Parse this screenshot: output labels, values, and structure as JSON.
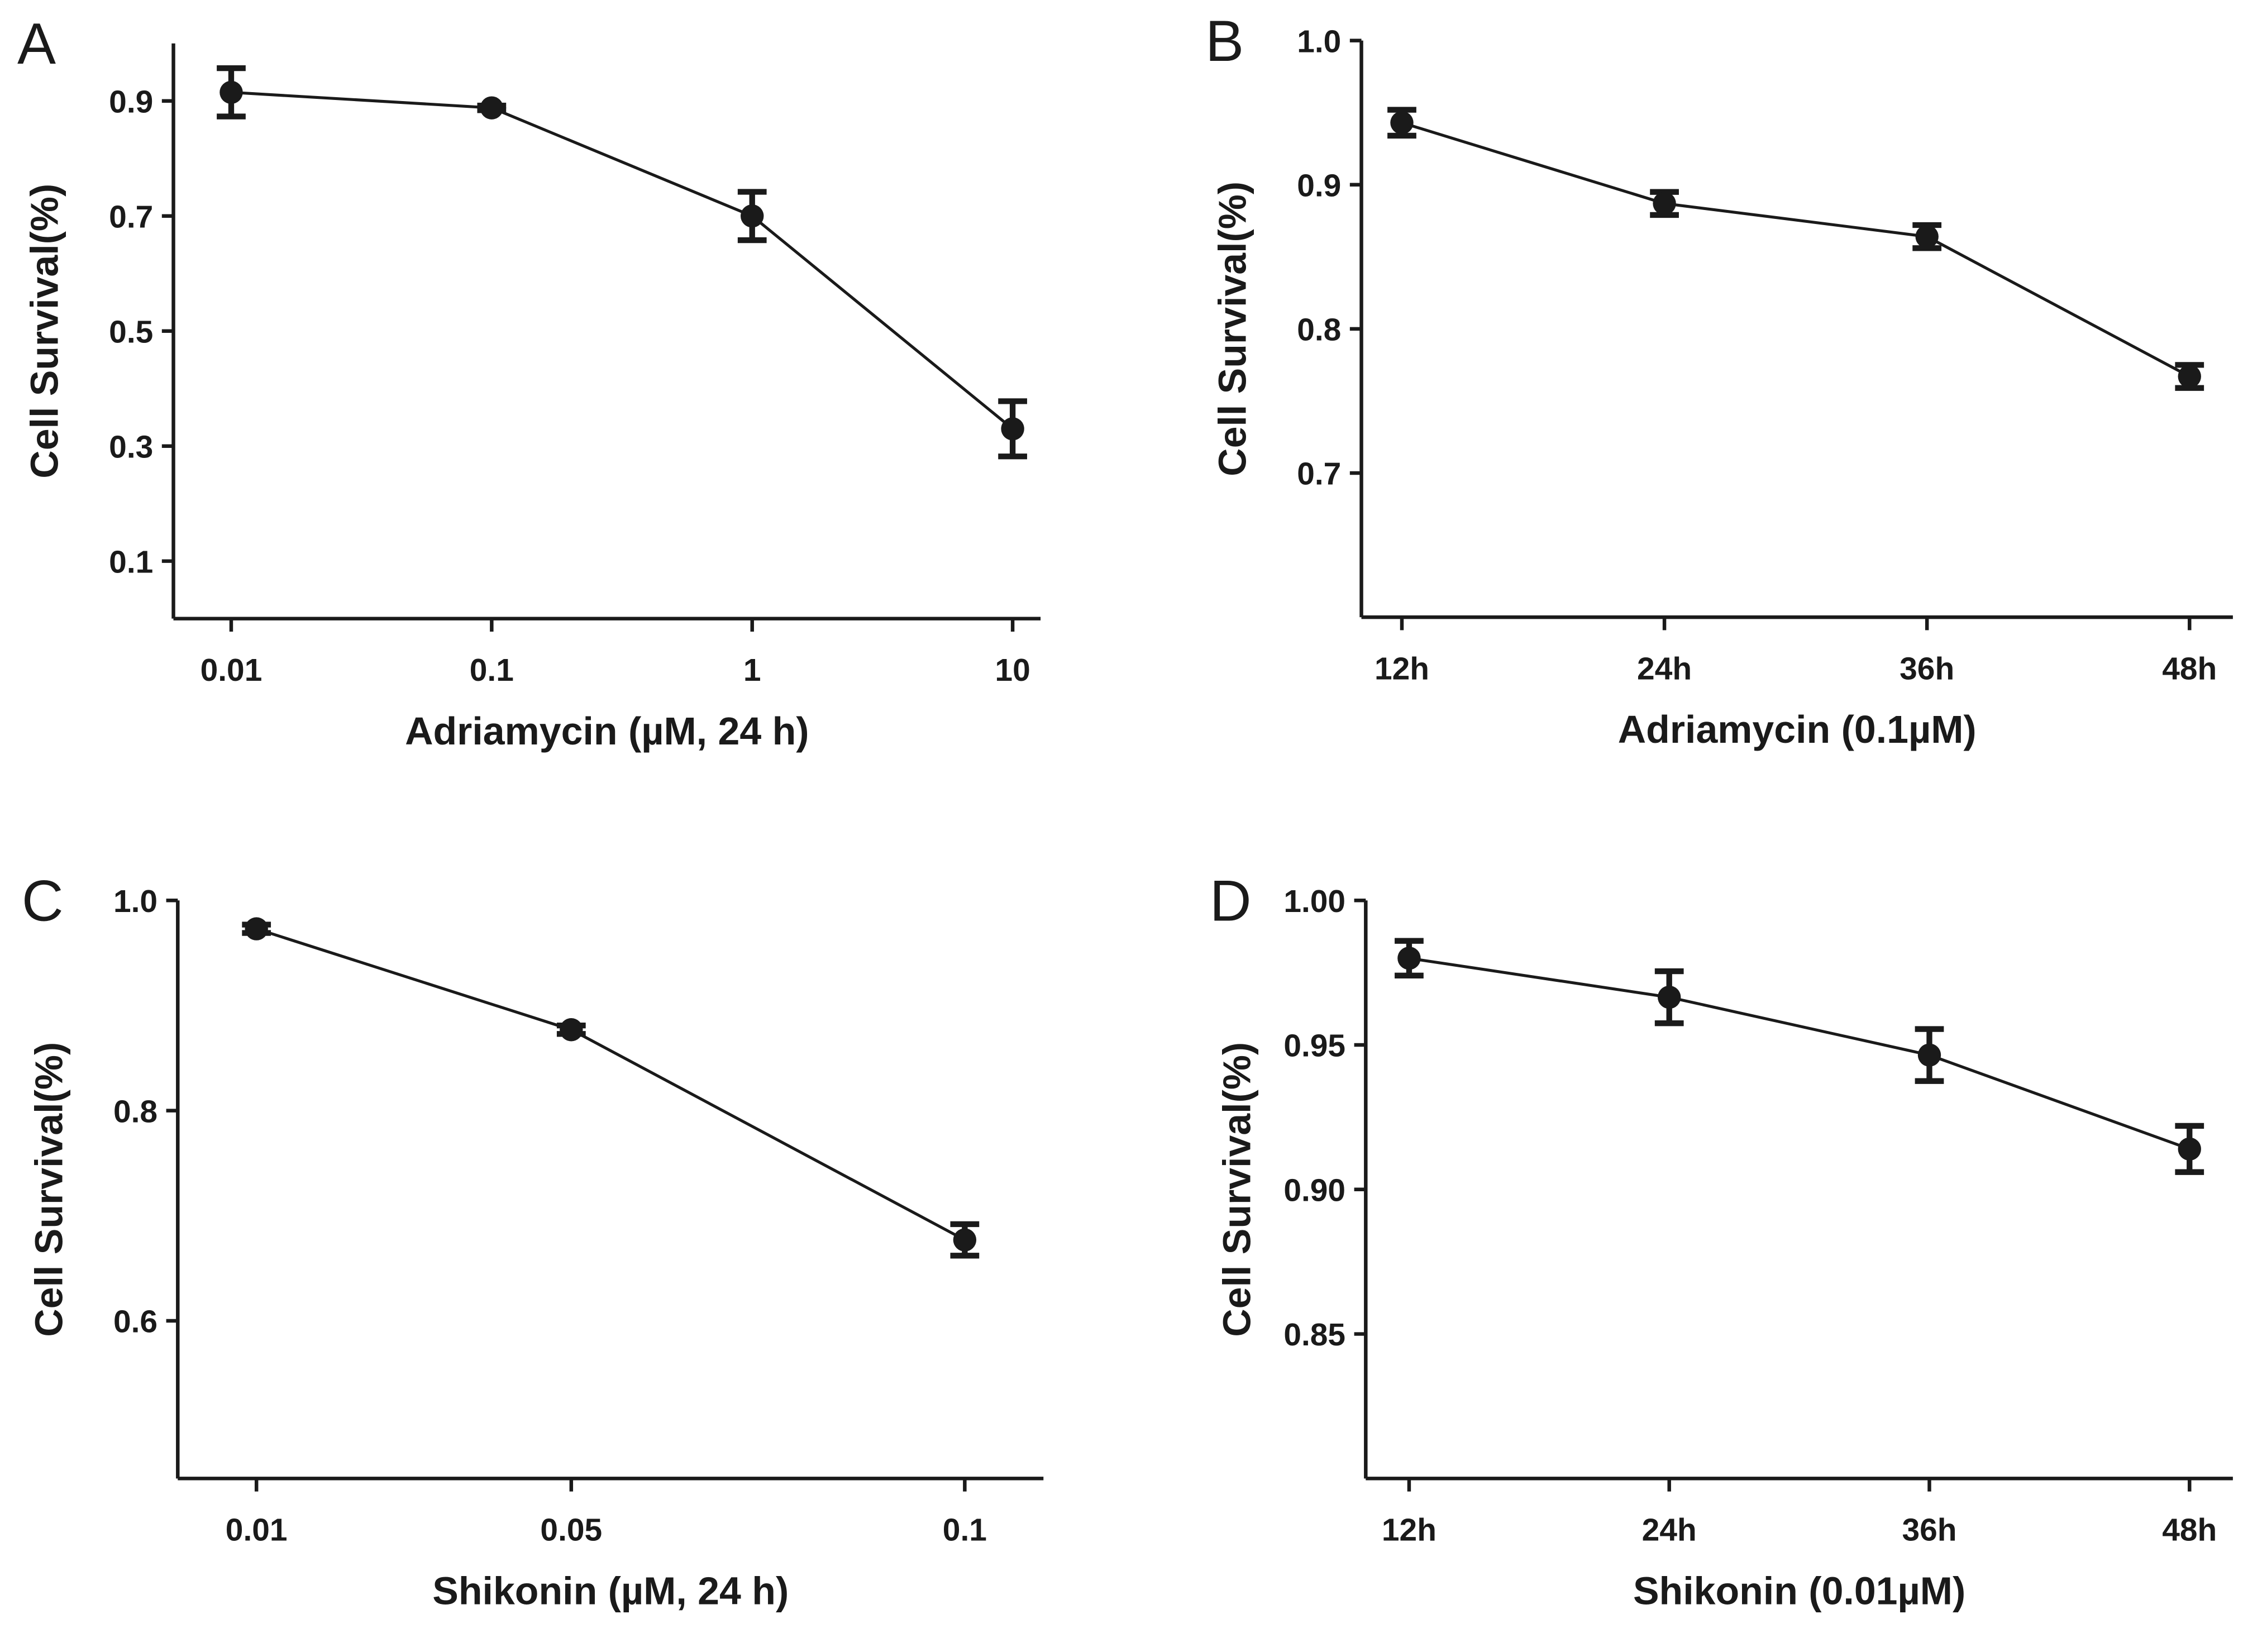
{
  "chart_data": [
    {
      "type": "line",
      "panel_label": "A",
      "y_label": "Cell Survival(%)",
      "x_label": "Adriamycin (µM, 24 h)",
      "x": [
        0.01,
        0.1,
        1,
        10
      ],
      "xscale": "log",
      "xlim": [
        0.006,
        12.8
      ],
      "xticks": [
        0.01,
        0.1,
        1,
        10
      ],
      "ylim": [
        0,
        1
      ],
      "yticks": [
        0.1,
        0.3,
        0.5,
        0.7,
        0.9
      ],
      "series": [
        {
          "color": "#1a1a1a",
          "values": [
            0.915,
            0.888,
            0.7,
            0.33
          ],
          "errors": [
            0.042,
            0.004,
            0.042,
            0.048
          ]
        }
      ]
    },
    {
      "type": "line",
      "panel_label": "B",
      "y_label": "Cell Survival(%)",
      "x_label": "Adriamycin (0.1µM)",
      "categories": [
        "12h",
        "24h",
        "36h",
        "48h"
      ],
      "ylim": [
        0.6,
        1.0
      ],
      "yticks": [
        0.7,
        0.8,
        0.9,
        {
          "value": 1.0,
          "label": "1.0"
        }
      ],
      "series": [
        {
          "color": "#1a1a1a",
          "values": [
            0.943,
            0.887,
            0.864,
            0.767
          ],
          "errors": [
            0.009,
            0.008,
            0.008,
            0.008
          ]
        }
      ]
    },
    {
      "type": "line",
      "panel_label": "C",
      "y_label": "Cell Survival(%)",
      "x_label": "Shikonin (µM, 24 h)",
      "x": [
        0.01,
        0.05,
        0.1
      ],
      "xlim": [
        0,
        0.11
      ],
      "xticks": [
        0.01,
        0.05,
        0.1
      ],
      "ylim": [
        0.45,
        1.0
      ],
      "yticks": [
        0.6,
        0.8,
        {
          "value": 1.0,
          "label": "1.0"
        }
      ],
      "series": [
        {
          "color": "#1a1a1a",
          "values": [
            0.973,
            0.877,
            0.677
          ],
          "errors": [
            0.004,
            0.004,
            0.015
          ]
        }
      ]
    },
    {
      "type": "line",
      "panel_label": "D",
      "y_label": "Cell Survival(%)",
      "x_label": "Shikonin (0.01µM)",
      "categories": [
        "12h",
        "24h",
        "36h",
        "48h"
      ],
      "ylim": [
        0.8,
        1.0
      ],
      "yticks": [
        0.85,
        {
          "value": 0.9,
          "label": "0.90"
        },
        0.95,
        {
          "value": 1.0,
          "label": "1.00"
        }
      ],
      "series": [
        {
          "color": "#1a1a1a",
          "values": [
            0.98,
            0.9665,
            0.9465,
            0.914
          ],
          "errors": [
            0.006,
            0.009,
            0.009,
            0.008
          ]
        }
      ]
    }
  ]
}
